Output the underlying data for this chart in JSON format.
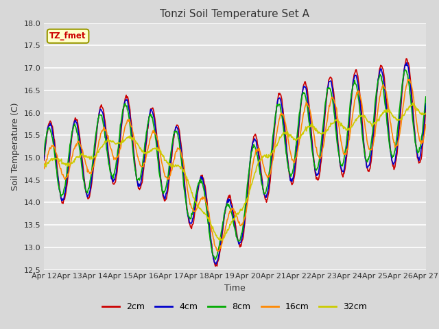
{
  "title": "Tonzi Soil Temperature Set A",
  "xlabel": "Time",
  "ylabel": "Soil Temperature (C)",
  "ylim": [
    12.5,
    18.0
  ],
  "background_color": "#d8d8d8",
  "plot_bg_color": "#e0e0e0",
  "grid_color": "#ffffff",
  "xtick_labels": [
    "Apr 12",
    "Apr 13",
    "Apr 14",
    "Apr 15",
    "Apr 16",
    "Apr 17",
    "Apr 18",
    "Apr 19",
    "Apr 20",
    "Apr 21",
    "Apr 22",
    "Apr 23",
    "Apr 24",
    "Apr 25",
    "Apr 26",
    "Apr 27"
  ],
  "series": {
    "2cm": {
      "color": "#cc0000"
    },
    "4cm": {
      "color": "#0000cc"
    },
    "8cm": {
      "color": "#00aa00"
    },
    "16cm": {
      "color": "#ff8800"
    },
    "32cm": {
      "color": "#cccc00"
    }
  },
  "legend_box": {
    "text": "TZ_fmet",
    "facecolor": "#ffffcc",
    "edgecolor": "#999900",
    "textcolor": "#cc0000"
  }
}
